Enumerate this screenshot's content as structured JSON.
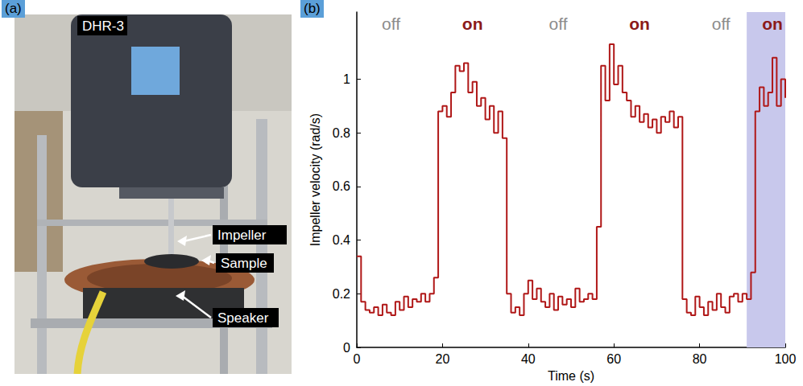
{
  "photo": {
    "panel": "(a)",
    "labels": [
      "DHR-3",
      "Impeller",
      "Sample",
      "Speaker"
    ]
  },
  "chart_data": {
    "type": "line",
    "panel": "(b)",
    "x_label": "Time (s)",
    "y_label": "Impeller velocity (rad/s)",
    "color": "#b01818",
    "line_style": "step",
    "x": [
      0,
      1,
      2,
      3,
      4,
      5,
      6,
      7,
      8,
      9,
      10,
      11,
      12,
      13,
      14,
      15,
      16,
      17,
      18,
      19,
      20,
      21,
      22,
      23,
      24,
      25,
      26,
      27,
      28,
      29,
      30,
      31,
      32,
      33,
      34,
      35,
      36,
      37,
      38,
      39,
      40,
      41,
      42,
      43,
      44,
      45,
      46,
      47,
      48,
      49,
      50,
      51,
      52,
      53,
      54,
      55,
      56,
      57,
      58,
      59,
      60,
      61,
      62,
      63,
      64,
      65,
      66,
      67,
      68,
      69,
      70,
      71,
      72,
      73,
      74,
      75,
      76,
      77,
      78,
      79,
      80,
      81,
      82,
      83,
      84,
      85,
      86,
      87,
      88,
      89,
      90,
      91,
      92,
      93,
      94,
      95,
      96,
      97,
      98,
      99,
      100
    ],
    "values": [
      0.34,
      0.17,
      0.14,
      0.13,
      0.15,
      0.12,
      0.16,
      0.13,
      0.12,
      0.17,
      0.14,
      0.19,
      0.15,
      0.18,
      0.17,
      0.2,
      0.17,
      0.2,
      0.26,
      0.88,
      0.9,
      0.86,
      0.95,
      1.05,
      1.03,
      1.06,
      0.95,
      0.99,
      0.9,
      0.93,
      0.85,
      0.9,
      0.8,
      0.88,
      0.78,
      0.2,
      0.13,
      0.15,
      0.12,
      0.2,
      0.25,
      0.18,
      0.22,
      0.17,
      0.15,
      0.2,
      0.14,
      0.19,
      0.16,
      0.18,
      0.15,
      0.22,
      0.17,
      0.18,
      0.2,
      0.18,
      0.45,
      1.05,
      0.92,
      1.13,
      0.98,
      1.05,
      0.95,
      0.92,
      0.86,
      0.9,
      0.84,
      0.87,
      0.82,
      0.85,
      0.8,
      0.86,
      0.84,
      0.88,
      0.82,
      0.86,
      0.18,
      0.13,
      0.12,
      0.19,
      0.15,
      0.12,
      0.17,
      0.14,
      0.2,
      0.15,
      0.13,
      0.19,
      0.2,
      0.17,
      0.2,
      0.18,
      0.28,
      0.88,
      0.97,
      0.9,
      0.95,
      1.08,
      0.9,
      1.0,
      0.93
    ],
    "xlim": [
      0,
      100
    ],
    "xticks": [
      0,
      20,
      40,
      60,
      80,
      100
    ],
    "ylim": [
      0,
      1.25
    ],
    "yticks": [
      0,
      0.2,
      0.4,
      0.6,
      0.8,
      1
    ],
    "grid": false,
    "shaded": {
      "x": [
        91,
        100
      ],
      "color": "#c8c8ec"
    },
    "annotations": [
      {
        "text": "off",
        "x": 8,
        "color": "#8c8c8c"
      },
      {
        "text": "on",
        "x": 27,
        "color": "#8b1a1a"
      },
      {
        "text": "off",
        "x": 47,
        "color": "#8c8c8c"
      },
      {
        "text": "on",
        "x": 66,
        "color": "#8b1a1a"
      },
      {
        "text": "off",
        "x": 85,
        "color": "#8c8c8c"
      },
      {
        "text": "on",
        "x": 97,
        "color": "#8b1a1a"
      }
    ]
  }
}
